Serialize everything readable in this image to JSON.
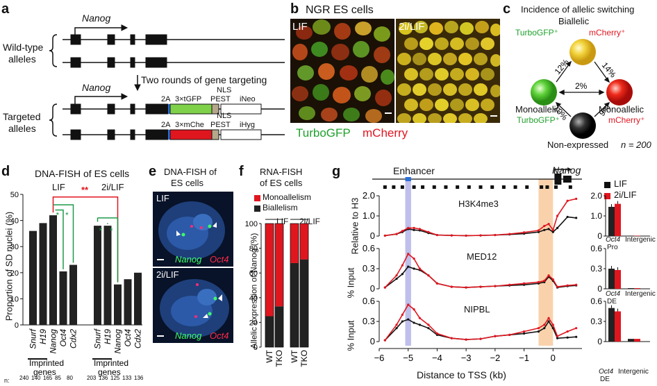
{
  "panels": {
    "a": "a",
    "b": "b",
    "c": "c",
    "d": "d",
    "e": "e",
    "f": "f",
    "g": "g"
  },
  "a": {
    "gene": "Nanog",
    "wt_label": [
      "Wild-type",
      "alleles"
    ],
    "tg_label": [
      "Targeted",
      "alleles"
    ],
    "targeting": "Two rounds of gene targeting",
    "c1": {
      "t2a": "2A",
      "rep": "3×tGFP",
      "nls": "NLS",
      "pest": "PEST",
      "sel": "iNeo"
    },
    "c2": {
      "t2a": "2A",
      "rep": "3×mChe",
      "nls": "NLS",
      "pest": "PEST",
      "sel": "iHyg"
    }
  },
  "b": {
    "title": "NGR ES cells",
    "left": "LIF",
    "right": "2i/LIF",
    "green": "TurboGFP",
    "red": "mCherry"
  },
  "c": {
    "title": "Incidence of allelic switching",
    "biallelic": "Biallelic",
    "bi_green": "TurboGFP⁺",
    "bi_red": "mCherry⁺",
    "mono": "Monoallelic",
    "mono_green": "TurboGFP⁺",
    "mono_r": "Monoallelic",
    "mono_red": "mCherry⁺",
    "nonexp": "Non-expressed",
    "n": "n = 200",
    "percents": {
      "g_to_y": "12%",
      "y_to_r": "14%",
      "g_r": "2%",
      "g_to_k": "10%",
      "r_to_k": "9%"
    }
  },
  "d": {
    "title": "DNA-FISH of ES cells",
    "lif": "LIF",
    "twoi": "2i/LIF",
    "ylabel": "Proportion of SD nuclei (%)",
    "sig_red": "**",
    "sig_g": "*",
    "imprinted": "Imprinted genes",
    "imprinted_l1": "Imprinted",
    "imprinted_l2": "genes",
    "n_label": "n:"
  },
  "e": {
    "title1": "DNA-FISH of",
    "title2": "ES cells",
    "img1": "LIF",
    "img2": "2i/LIF",
    "nanog": "Nanog",
    "oct4": "Oct4"
  },
  "f": {
    "title1": "RNA-FISH",
    "title2": "of ES cells",
    "leg_mono": "Monoallelism",
    "leg_bi": "Biallelism",
    "ylabel": "Allelic expression of Nanog (%)",
    "lif": "LIF",
    "twoi": "2i/LIF"
  },
  "g": {
    "enhancer": "Enhancer",
    "gene": "Nanog",
    "leg_lif": "LIF",
    "leg_2i": "2i/LIF",
    "tracks": [
      "H3K4me3",
      "MED12",
      "NIPBL"
    ],
    "ylabels": [
      "Relative to H3",
      "% Input",
      "% Input"
    ],
    "xlabel": "Distance to TSS (kb)",
    "side_labels": [
      [
        "Oct4",
        "Pro",
        "Intergenic"
      ],
      [
        "Oct4",
        "DE",
        "Intergenic"
      ],
      [
        "Oct4",
        "DE",
        "Intergenic"
      ]
    ]
  },
  "chart_data": [
    {
      "type": "bar",
      "panel": "d",
      "title": "DNA-FISH of ES cells",
      "ylabel": "Proportion of SD nuclei (%)",
      "ylim": [
        0,
        50
      ],
      "yticks": [
        0,
        10,
        20,
        30,
        40,
        50
      ],
      "groups": [
        {
          "name": "LIF",
          "categories": [
            "Snurf",
            "H19",
            "Nanog",
            "Oct4",
            "Cdx2"
          ],
          "values": [
            36,
            39,
            42,
            20.5,
            23
          ],
          "n": [
            240,
            140,
            165,
            85,
            80
          ]
        },
        {
          "name": "2i/LIF",
          "categories": [
            "Snurf",
            "H19",
            "Nanog",
            "Oct4",
            "Cdx2"
          ],
          "values": [
            38,
            38,
            15.5,
            17.5,
            20
          ],
          "n": [
            203,
            136,
            125,
            133,
            136
          ]
        }
      ]
    },
    {
      "type": "bar",
      "panel": "f",
      "ylabel": "Allelic expression of Nanog (%)",
      "ylim": [
        0,
        100
      ],
      "yticks": [
        0,
        20,
        40,
        60,
        80,
        100
      ],
      "categories": [
        "WT",
        "TKO",
        "WT",
        "TKO"
      ],
      "conditions": [
        "LIF",
        "LIF",
        "2i/LIF",
        "2i/LIF"
      ],
      "series": [
        {
          "name": "Biallelism",
          "values": [
            25,
            33,
            68,
            71
          ],
          "color": "#222222"
        },
        {
          "name": "Monoallelism",
          "values": [
            75,
            67,
            32,
            29
          ],
          "color": "#e0161f"
        }
      ]
    },
    {
      "type": "line",
      "panel": "g",
      "xlabel": "Distance to TSS (kb)",
      "xlim": [
        -6,
        1
      ],
      "xticks": [
        -6,
        -5,
        -4,
        -3,
        -2,
        -1,
        0
      ],
      "x": [
        -5.8,
        -5.4,
        -5.2,
        -5.0,
        -4.8,
        -4.6,
        -4.3,
        -4.0,
        -3.5,
        -3.0,
        -2.5,
        -2.0,
        -1.5,
        -1.0,
        -0.5,
        -0.3,
        -0.15,
        0,
        0.15,
        0.5,
        0.8
      ],
      "tracks": [
        {
          "name": "H3K4me3",
          "ylabel": "Relative to H3",
          "ylim": [
            0,
            2.0
          ],
          "yticks": [
            0,
            1.0,
            2.0
          ],
          "series": [
            {
              "name": "LIF",
              "values": [
                0.02,
                0.1,
                0.2,
                0.35,
                0.3,
                0.28,
                0.15,
                0.05,
                0.03,
                0.02,
                0.03,
                0.05,
                0.08,
                0.12,
                0.2,
                0.3,
                0.35,
                0.2,
                0.4,
                0.95,
                0.9
              ]
            },
            {
              "name": "2i/LIF",
              "values": [
                0.02,
                0.1,
                0.25,
                0.4,
                0.4,
                0.35,
                0.2,
                0.05,
                0.03,
                0.02,
                0.03,
                0.05,
                0.1,
                0.18,
                0.28,
                0.5,
                0.6,
                0.3,
                1.0,
                1.75,
                1.85
              ]
            }
          ]
        },
        {
          "name": "MED12",
          "ylabel": "% Input",
          "ylim": [
            0,
            0.6
          ],
          "yticks": [
            0,
            0.3,
            0.6
          ],
          "series": [
            {
              "name": "LIF",
              "values": [
                0.02,
                0.15,
                0.22,
                0.33,
                0.3,
                0.28,
                0.2,
                0.08,
                0.03,
                0.02,
                0.03,
                0.04,
                0.05,
                0.06,
                0.08,
                0.1,
                0.18,
                0.12,
                0.02,
                0.04,
                0.05
              ]
            },
            {
              "name": "2i/LIF",
              "values": [
                0.02,
                0.2,
                0.35,
                0.52,
                0.45,
                0.3,
                0.2,
                0.08,
                0.03,
                0.02,
                0.03,
                0.04,
                0.06,
                0.08,
                0.1,
                0.12,
                0.2,
                0.14,
                0.03,
                0.05,
                0.06
              ]
            }
          ]
        },
        {
          "name": "NIPBL",
          "ylabel": "% Input",
          "ylim": [
            0,
            0.6
          ],
          "yticks": [
            0,
            0.3,
            0.6
          ],
          "series": [
            {
              "name": "LIF",
              "values": [
                0.02,
                0.2,
                0.3,
                0.33,
                0.28,
                0.25,
                0.2,
                0.1,
                0.05,
                0.03,
                0.04,
                0.08,
                0.1,
                0.12,
                0.15,
                0.2,
                0.3,
                0.2,
                0.05,
                0.06,
                0.07
              ]
            },
            {
              "name": "2i/LIF",
              "values": [
                0.02,
                0.25,
                0.4,
                0.55,
                0.48,
                0.35,
                0.25,
                0.12,
                0.05,
                0.03,
                0.04,
                0.08,
                0.1,
                0.15,
                0.2,
                0.25,
                0.35,
                0.25,
                0.08,
                0.15,
                0.2
              ]
            }
          ]
        }
      ]
    },
    {
      "type": "bar",
      "panel": "g-side",
      "tracks": [
        {
          "ylim": [
            0,
            2.0
          ],
          "yticks": [
            0,
            1.0,
            2.0
          ],
          "categories": [
            "Oct4 Pro",
            "Intergenic"
          ],
          "series": [
            {
              "name": "LIF",
              "values": [
                1.45,
                0.02
              ]
            },
            {
              "name": "2i/LIF",
              "values": [
                1.6,
                0.02
              ]
            }
          ]
        },
        {
          "ylim": [
            0,
            0.6
          ],
          "yticks": [
            0,
            0.3,
            0.6
          ],
          "categories": [
            "Oct4 DE",
            "Intergenic"
          ],
          "series": [
            {
              "name": "LIF",
              "values": [
                0.3,
                0.01
              ]
            },
            {
              "name": "2i/LIF",
              "values": [
                0.28,
                0.01
              ]
            }
          ]
        },
        {
          "ylim": [
            0,
            0.6
          ],
          "yticks": [
            0,
            0.3,
            0.6
          ],
          "categories": [
            "Oct4 DE",
            "Intergenic"
          ],
          "series": [
            {
              "name": "LIF",
              "values": [
                0.5,
                0.04
              ]
            },
            {
              "name": "2i/LIF",
              "values": [
                0.45,
                0.04
              ]
            }
          ]
        }
      ]
    }
  ]
}
